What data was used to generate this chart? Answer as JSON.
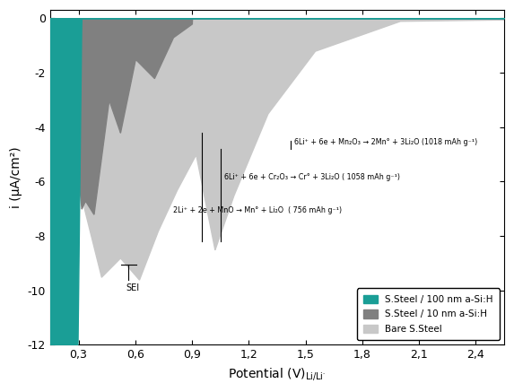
{
  "ylabel": "i (μA/cm²)",
  "xlim": [
    0.15,
    2.55
  ],
  "ylim": [
    -12,
    0.3
  ],
  "xticks": [
    0.3,
    0.6,
    0.9,
    1.2,
    1.5,
    1.8,
    2.1,
    2.4
  ],
  "yticks": [
    0,
    -2,
    -4,
    -6,
    -8,
    -10,
    -12
  ],
  "color_teal": "#1a9e96",
  "color_dark_gray": "#808080",
  "color_light_gray": "#c8c8c8",
  "annotation1": "6Li⁺ + 6e + Mn₂O₃ → 2Mn° + 3Li₂O (1018 mAh g⁻¹)",
  "annotation2": "6Li⁺ + 6e + Cr₂O₃ → Cr° + 3Li₂O ( 1058 mAh g⁻¹)",
  "annotation3": "2Li⁺ + 2e + MnO → Mn° + Li₂O  ( 756 mAh g⁻¹)",
  "legend_labels": [
    "S.Steel / 100 nm a-Si:H",
    "S.Steel / 10 nm a-Si:H",
    "Bare S.Steel"
  ],
  "sei_x": 0.565,
  "sei_y": -9.6
}
